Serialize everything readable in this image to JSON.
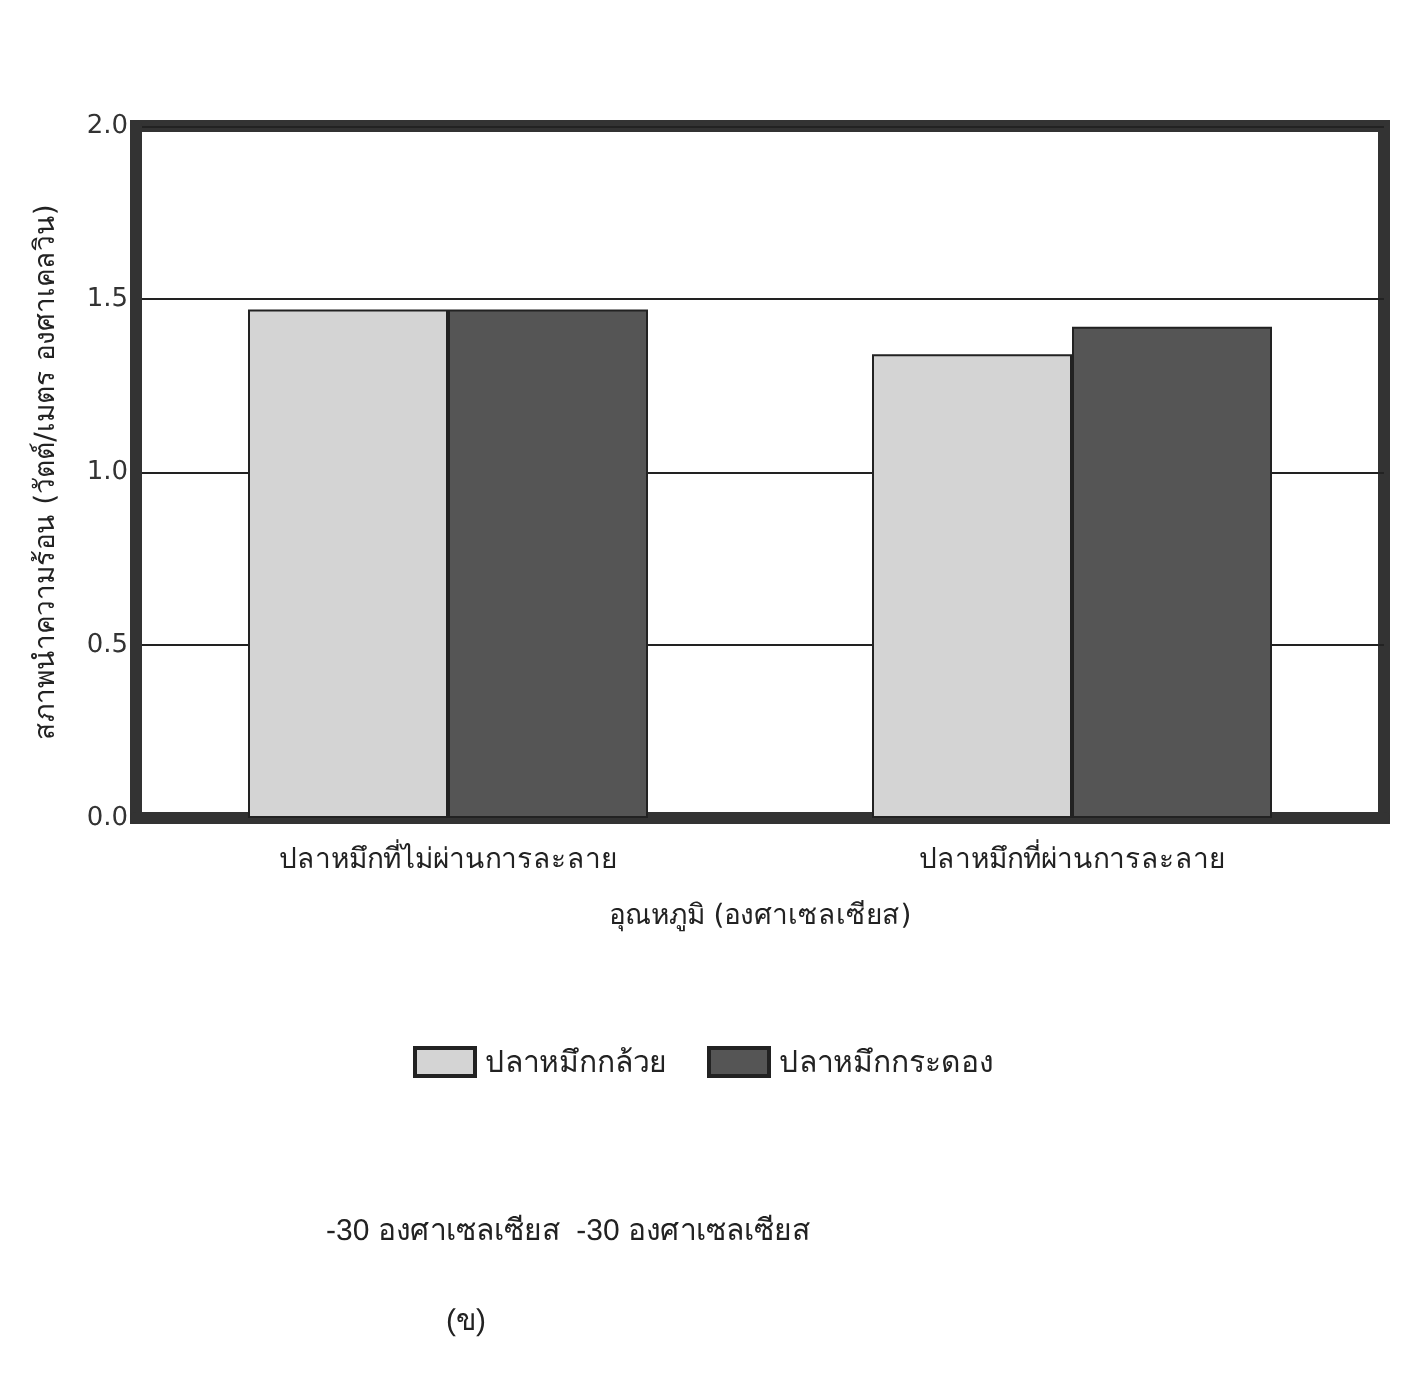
{
  "chart_data": {
    "type": "bar",
    "xlabel": "อุณหภูมิ (องศาเซลเซียส)",
    "ylabel": "สภาพนำความร้อน (วัตต์/เมตร องศาเคลวิน)",
    "categories": [
      "ปลาหมึกที่ไม่ผ่านการละลาย",
      "ปลาหมึกที่ผ่านการละลาย"
    ],
    "series": [
      {
        "name": "ปลาหมึกกล้วย",
        "color": "#d4d4d4",
        "values": [
          1.47,
          1.34
        ]
      },
      {
        "name": "ปลาหมึกกระดอง",
        "color": "#555555",
        "values": [
          1.47,
          1.42
        ]
      }
    ],
    "ylim": [
      0,
      2
    ],
    "yticks": [
      {
        "value": 0,
        "label": "0.0"
      },
      0.5,
      {
        "value": 1,
        "label": "1.0"
      },
      1.5,
      {
        "value": 2,
        "label": "2.0"
      }
    ],
    "grid": "y",
    "legend": "bottom",
    "annotations": [
      "-30 องศาเซลเซียส  -30 องศาเซลเซียส",
      "(ข)"
    ]
  }
}
